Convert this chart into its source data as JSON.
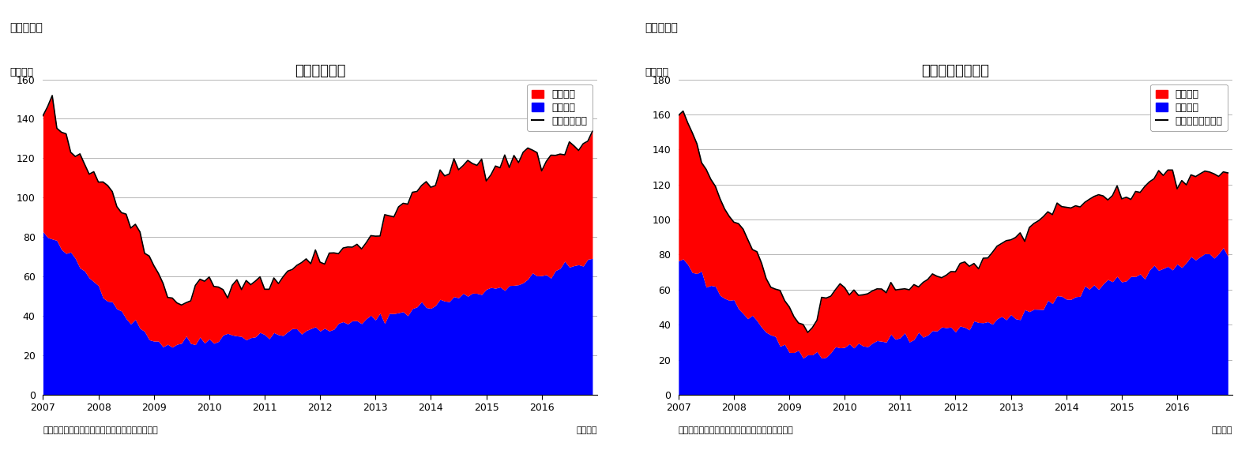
{
  "chart1_title": "住宅着工件数",
  "chart2_title": "住宅着工許可件数",
  "super1": "（図表１）",
  "super2": "（図表２）",
  "ylabel": "（万件）",
  "xlabel_note": "（月次）",
  "source_note": "（資料）センサス局よりニッセイ基礎研究所作成",
  "legend1_items": [
    "集合住宅",
    "一戸建て",
    "住宅着工件数"
  ],
  "legend2_items": [
    "集合住宅",
    "一戸建て",
    "住宅建築許可件数"
  ],
  "chart1_ylim": [
    0,
    160
  ],
  "chart2_ylim": [
    0,
    180
  ],
  "chart1_yticks": [
    0,
    20,
    40,
    60,
    80,
    100,
    120,
    140,
    160
  ],
  "chart2_yticks": [
    0,
    20,
    40,
    60,
    80,
    100,
    120,
    140,
    160,
    180
  ],
  "red_color": "#FF0000",
  "blue_color": "#0000FF",
  "black_color": "#000000",
  "bg_color": "#FFFFFF",
  "grid_color": "#AAAAAA",
  "title_fontsize": 13,
  "label_fontsize": 9,
  "tick_fontsize": 9,
  "note_fontsize": 8,
  "super_fontsize": 10,
  "ylabel_fontsize": 9,
  "blue1_trend": [
    82,
    80,
    78,
    76,
    74,
    72,
    70,
    68,
    65,
    62,
    60,
    58,
    55,
    52,
    50,
    48,
    45,
    42,
    40,
    38,
    36,
    34,
    32,
    30,
    28,
    27,
    26,
    25,
    25,
    26,
    27,
    27,
    26,
    27,
    28,
    28,
    28,
    29,
    29,
    30,
    30,
    30,
    30,
    30,
    30,
    30,
    30,
    30,
    30,
    31,
    31,
    31,
    31,
    31,
    32,
    32,
    32,
    33,
    33,
    33,
    33,
    34,
    34,
    35,
    35,
    35,
    36,
    36,
    37,
    37,
    38,
    38,
    38,
    39,
    40,
    40,
    41,
    42,
    42,
    43,
    44,
    44,
    45,
    45,
    45,
    46,
    47,
    47,
    48,
    49,
    49,
    50,
    51,
    52,
    52,
    53,
    53,
    54,
    54,
    55,
    55,
    56,
    56,
    57,
    57,
    58,
    59,
    60,
    60,
    61,
    62,
    63,
    64,
    64,
    65,
    65,
    66,
    67,
    67,
    68
  ],
  "total1_trend": [
    140,
    148,
    145,
    138,
    132,
    128,
    125,
    122,
    120,
    118,
    115,
    113,
    110,
    107,
    104,
    100,
    97,
    93,
    90,
    87,
    84,
    80,
    75,
    70,
    65,
    60,
    55,
    52,
    48,
    46,
    45,
    46,
    47,
    55,
    58,
    59,
    56,
    54,
    53,
    52,
    51,
    54,
    56,
    55,
    54,
    55,
    56,
    56,
    54,
    55,
    57,
    58,
    60,
    62,
    63,
    64,
    65,
    66,
    67,
    68,
    66,
    68,
    70,
    71,
    72,
    73,
    74,
    75,
    76,
    77,
    78,
    79,
    80,
    83,
    87,
    90,
    92,
    95,
    97,
    99,
    100,
    102,
    104,
    106,
    108,
    108,
    109,
    110,
    111,
    112,
    113,
    114,
    115,
    116,
    117,
    118,
    110,
    112,
    113,
    115,
    117,
    119,
    120,
    121,
    122,
    123,
    124,
    125,
    115,
    117,
    119,
    121,
    122,
    123,
    124,
    125,
    126,
    127,
    130,
    132
  ],
  "blue2_trend": [
    78,
    76,
    74,
    72,
    70,
    68,
    65,
    63,
    60,
    58,
    56,
    54,
    52,
    50,
    47,
    44,
    42,
    39,
    37,
    35,
    33,
    31,
    29,
    27,
    26,
    25,
    24,
    23,
    23,
    24,
    25,
    25,
    24,
    25,
    26,
    27,
    27,
    28,
    28,
    29,
    29,
    30,
    30,
    30,
    30,
    30,
    31,
    31,
    31,
    32,
    32,
    33,
    33,
    34,
    34,
    35,
    35,
    36,
    36,
    37,
    37,
    38,
    38,
    39,
    40,
    40,
    41,
    42,
    42,
    43,
    44,
    44,
    44,
    45,
    46,
    47,
    48,
    49,
    50,
    51,
    52,
    53,
    54,
    55,
    55,
    56,
    57,
    58,
    59,
    60,
    61,
    62,
    63,
    64,
    65,
    66,
    66,
    67,
    67,
    68,
    68,
    69,
    70,
    70,
    71,
    72,
    73,
    74,
    74,
    75,
    76,
    77,
    78,
    78,
    79,
    80,
    80,
    81,
    81,
    82
  ],
  "total2_trend": [
    160,
    163,
    155,
    148,
    140,
    133,
    127,
    122,
    118,
    113,
    108,
    104,
    100,
    97,
    93,
    88,
    84,
    78,
    72,
    67,
    63,
    60,
    57,
    53,
    49,
    45,
    40,
    37,
    36,
    38,
    42,
    55,
    58,
    60,
    62,
    63,
    60,
    58,
    57,
    57,
    57,
    58,
    59,
    59,
    59,
    60,
    61,
    62,
    60,
    61,
    62,
    63,
    63,
    64,
    65,
    66,
    67,
    68,
    69,
    70,
    70,
    72,
    73,
    74,
    76,
    77,
    79,
    80,
    82,
    84,
    86,
    88,
    88,
    90,
    92,
    94,
    96,
    98,
    100,
    102,
    103,
    104,
    105,
    106,
    107,
    107,
    108,
    109,
    110,
    111,
    112,
    113,
    114,
    114,
    115,
    116,
    110,
    112,
    113,
    116,
    118,
    120,
    122,
    124,
    126,
    128,
    130,
    131,
    120,
    122,
    123,
    124,
    125,
    126,
    127,
    128,
    124,
    125,
    126,
    127
  ]
}
